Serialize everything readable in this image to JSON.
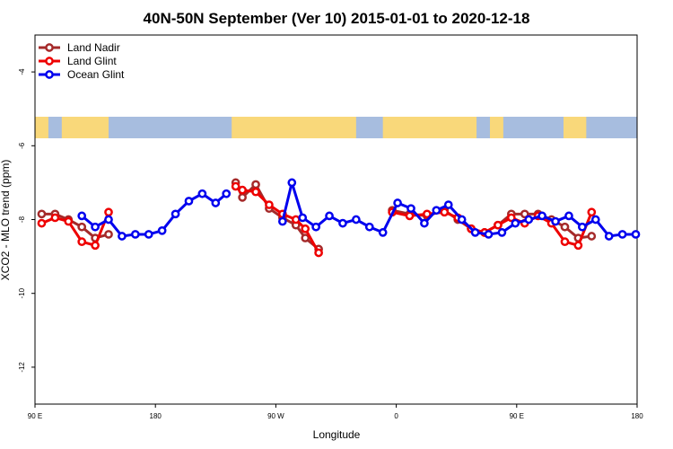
{
  "chart_data": {
    "type": "line",
    "title": "40N-50N September (Ver 10)   2015-01-01 to 2020-12-18",
    "xlabel": "Longitude",
    "ylabel": "XCO2 - MLO trend (ppm)",
    "xlim": [
      90,
      540
    ],
    "ylim": [
      -13,
      -3
    ],
    "x_ticks": [
      {
        "value": 90,
        "label": "90 E"
      },
      {
        "value": 180,
        "label": "180"
      },
      {
        "value": 270,
        "label": "90 W"
      },
      {
        "value": 360,
        "label": "0"
      },
      {
        "value": 450,
        "label": "90 E"
      },
      {
        "value": 540,
        "label": "180"
      }
    ],
    "y_ticks": [
      {
        "value": -4,
        "label": "-4"
      },
      {
        "value": -6,
        "label": "-6"
      },
      {
        "value": -8,
        "label": "-8"
      },
      {
        "value": -10,
        "label": "-10"
      },
      {
        "value": -12,
        "label": "-12"
      }
    ],
    "grid": false,
    "legend_position": "top-left",
    "map_strip": {
      "ocean_color": "#a7bddf",
      "land_color": "#f9d87a",
      "land_spans": [
        [
          90,
          100
        ],
        [
          110,
          145
        ],
        [
          237,
          330
        ],
        [
          350,
          420
        ],
        [
          430,
          440
        ],
        [
          485,
          502
        ]
      ]
    },
    "series": [
      {
        "name": "Land Nadir",
        "color": "#a52a2a",
        "segments": [
          [
            [
              95,
              -7.85
            ],
            [
              105,
              -7.85
            ],
            [
              115,
              -8.0
            ],
            [
              125,
              -8.2
            ],
            [
              135,
              -8.5
            ],
            [
              145,
              -8.4
            ]
          ],
          [
            [
              240,
              -7.0
            ],
            [
              245,
              -7.4
            ],
            [
              255,
              -7.05
            ],
            [
              265,
              -7.7
            ],
            [
              275,
              -7.95
            ],
            [
              285,
              -8.15
            ],
            [
              292,
              -8.5
            ],
            [
              302,
              -8.8
            ]
          ],
          [
            [
              357,
              -7.75
            ],
            [
              370,
              -7.85
            ],
            [
              383,
              -7.9
            ],
            [
              396,
              -7.75
            ],
            [
              406,
              -8.0
            ],
            [
              416,
              -8.25
            ],
            [
              426,
              -8.35
            ],
            [
              436,
              -8.15
            ],
            [
              446,
              -7.85
            ],
            [
              456,
              -7.85
            ],
            [
              466,
              -7.85
            ],
            [
              476,
              -8.0
            ],
            [
              486,
              -8.2
            ],
            [
              496,
              -8.5
            ],
            [
              506,
              -8.45
            ]
          ]
        ]
      },
      {
        "name": "Land Glint",
        "color": "#ee0000",
        "segments": [
          [
            [
              95,
              -8.1
            ],
            [
              105,
              -7.95
            ],
            [
              115,
              -8.05
            ],
            [
              125,
              -8.6
            ],
            [
              135,
              -8.7
            ],
            [
              145,
              -7.8
            ]
          ],
          [
            [
              240,
              -7.1
            ],
            [
              245,
              -7.2
            ],
            [
              255,
              -7.25
            ],
            [
              265,
              -7.6
            ],
            [
              275,
              -7.85
            ],
            [
              285,
              -8.0
            ],
            [
              292,
              -8.25
            ],
            [
              302,
              -8.9
            ]
          ],
          [
            [
              357,
              -7.8
            ],
            [
              370,
              -7.9
            ],
            [
              383,
              -7.85
            ],
            [
              396,
              -7.8
            ],
            [
              406,
              -7.95
            ],
            [
              416,
              -8.25
            ],
            [
              426,
              -8.35
            ],
            [
              436,
              -8.15
            ],
            [
              446,
              -7.95
            ],
            [
              456,
              -8.1
            ],
            [
              466,
              -7.9
            ],
            [
              476,
              -8.1
            ],
            [
              486,
              -8.6
            ],
            [
              496,
              -8.7
            ],
            [
              506,
              -7.8
            ]
          ]
        ]
      },
      {
        "name": "Ocean Glint",
        "color": "#0000ee",
        "segments": [
          [
            [
              125,
              -7.9
            ],
            [
              135,
              -8.2
            ],
            [
              145,
              -8.0
            ],
            [
              155,
              -8.45
            ],
            [
              165,
              -8.4
            ],
            [
              175,
              -8.4
            ],
            [
              185,
              -8.3
            ],
            [
              195,
              -7.85
            ],
            [
              205,
              -7.5
            ],
            [
              215,
              -7.3
            ],
            [
              225,
              -7.55
            ],
            [
              233,
              -7.3
            ]
          ],
          [
            [
              275,
              -8.05
            ],
            [
              282,
              -7.0
            ],
            [
              290,
              -7.95
            ],
            [
              300,
              -8.2
            ],
            [
              310,
              -7.9
            ],
            [
              320,
              -8.1
            ],
            [
              330,
              -8.0
            ],
            [
              340,
              -8.2
            ],
            [
              350,
              -8.35
            ],
            [
              361,
              -7.55
            ],
            [
              371,
              -7.7
            ],
            [
              381,
              -8.1
            ],
            [
              390,
              -7.75
            ],
            [
              399,
              -7.6
            ],
            [
              409,
              -8.0
            ],
            [
              419,
              -8.35
            ],
            [
              429,
              -8.4
            ],
            [
              439,
              -8.35
            ],
            [
              449,
              -8.1
            ],
            [
              459,
              -8.0
            ],
            [
              469,
              -7.9
            ],
            [
              479,
              -8.05
            ],
            [
              489,
              -7.9
            ],
            [
              499,
              -8.2
            ],
            [
              509,
              -8.0
            ],
            [
              519,
              -8.45
            ],
            [
              529,
              -8.4
            ],
            [
              539,
              -8.4
            ]
          ]
        ]
      }
    ]
  }
}
